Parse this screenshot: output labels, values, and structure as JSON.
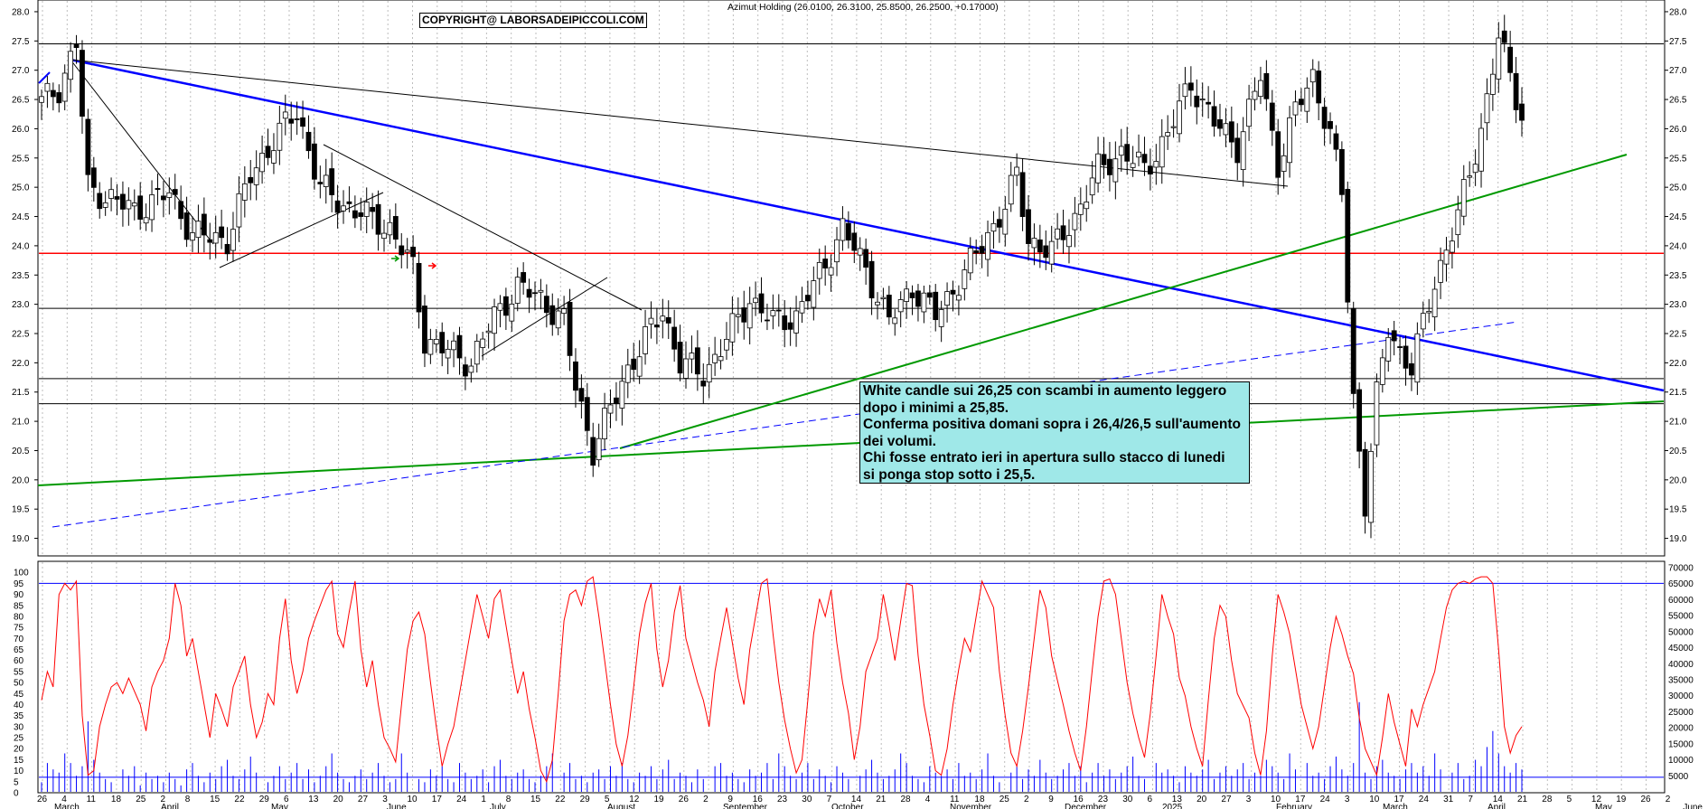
{
  "title": "Azimut Holding (26.0100, 26.3100, 25.8500, 26.2500, +0.17000)",
  "copyright": "COPYRIGHT@ LABORSADEIPICCOLI.COM",
  "note": {
    "lines": [
      "White candle sui 26,25 con scambi in aumento leggero",
      "dopo i minimi a 25,85.",
      "Conferma positiva domani sopra i 26,4/26,5 sull'aumento",
      "dei volumi.",
      "Chi fosse entrato ieri in apertura sullo stacco di lunedi",
      "si ponga stop sotto i 25,5."
    ],
    "background": "#9fe8e8"
  },
  "colors": {
    "resistance": "#ff0000",
    "trend_blue": "#0000ff",
    "trend_green": "#009900",
    "stochastic": "#ff0000",
    "volume": "#0000ff",
    "candle_down": "#000000",
    "candle_up": "#ffffff"
  },
  "chart_data": [
    {
      "type": "candlestick",
      "ylim": [
        18.7,
        28.2
      ],
      "price_ticks": [
        "28.0",
        "27.5",
        "27.0",
        "26.5",
        "26.0",
        "25.5",
        "25.0",
        "24.5",
        "24.0",
        "23.5",
        "23.0",
        "22.5",
        "22.0",
        "21.5",
        "21.0",
        "20.5",
        "20.0",
        "19.5",
        "19.0"
      ],
      "horizontal_levels": [
        {
          "value": 27.45,
          "color": "black"
        },
        {
          "value": 23.87,
          "color": "red"
        },
        {
          "value": 22.93,
          "color": "black"
        },
        {
          "value": 21.73,
          "color": "black"
        },
        {
          "value": 21.3,
          "color": "black"
        }
      ],
      "close_anchors": [
        [
          0,
          26.45
        ],
        [
          3,
          26.7
        ],
        [
          6,
          27.45
        ],
        [
          8,
          25.0
        ],
        [
          12,
          24.8
        ],
        [
          16,
          24.6
        ],
        [
          22,
          24.9
        ],
        [
          26,
          24.2
        ],
        [
          32,
          24.1
        ],
        [
          36,
          25.2
        ],
        [
          40,
          25.8
        ],
        [
          44,
          26.3
        ],
        [
          48,
          25.0
        ],
        [
          52,
          24.7
        ],
        [
          56,
          24.5
        ],
        [
          60,
          24.3
        ],
        [
          64,
          23.6
        ],
        [
          66,
          22.4
        ],
        [
          70,
          22.2
        ],
        [
          74,
          22.0
        ],
        [
          78,
          22.8
        ],
        [
          82,
          23.3
        ],
        [
          86,
          23.1
        ],
        [
          90,
          22.7
        ],
        [
          92,
          21.6
        ],
        [
          95,
          20.5
        ],
        [
          98,
          21.2
        ],
        [
          101,
          21.9
        ],
        [
          104,
          22.4
        ],
        [
          107,
          22.9
        ],
        [
          110,
          22.0
        ],
        [
          114,
          21.8
        ],
        [
          118,
          22.4
        ],
        [
          122,
          23.1
        ],
        [
          126,
          22.7
        ],
        [
          130,
          22.8
        ],
        [
          134,
          23.5
        ],
        [
          138,
          24.3
        ],
        [
          142,
          23.6
        ],
        [
          146,
          22.7
        ],
        [
          150,
          23.3
        ],
        [
          154,
          22.8
        ],
        [
          158,
          23.4
        ],
        [
          162,
          24.0
        ],
        [
          166,
          24.7
        ],
        [
          168,
          25.2
        ],
        [
          170,
          24.1
        ],
        [
          174,
          23.9
        ],
        [
          178,
          24.5
        ],
        [
          182,
          25.3
        ],
        [
          186,
          25.6
        ],
        [
          190,
          25.3
        ],
        [
          194,
          25.9
        ],
        [
          198,
          26.8
        ],
        [
          202,
          26.1
        ],
        [
          206,
          25.7
        ],
        [
          210,
          26.9
        ],
        [
          213,
          25.4
        ],
        [
          216,
          26.3
        ],
        [
          219,
          26.9
        ],
        [
          222,
          25.9
        ],
        [
          224,
          24.9
        ],
        [
          226,
          21.4
        ],
        [
          228,
          19.6
        ],
        [
          230,
          21.4
        ],
        [
          232,
          22.6
        ],
        [
          234,
          22.2
        ],
        [
          236,
          21.9
        ],
        [
          240,
          23.4
        ],
        [
          244,
          24.5
        ],
        [
          248,
          26.0
        ],
        [
          251,
          27.55
        ],
        [
          255,
          26.25
        ]
      ],
      "volume_ticks": [
        "70000",
        "65000",
        "60000",
        "55000",
        "50000",
        "45000",
        "40000",
        "35000",
        "30000",
        "25000",
        "20000",
        "15000",
        "10000",
        "5000"
      ]
    },
    {
      "type": "line",
      "ylim": [
        0,
        105
      ],
      "y_ticks": [
        "100",
        "95",
        "90",
        "85",
        "80",
        "75",
        "70",
        "65",
        "60",
        "55",
        "50",
        "45",
        "40",
        "35",
        "30",
        "25",
        "20",
        "15",
        "10",
        "5",
        "0"
      ],
      "levels": [
        95,
        7
      ],
      "series": [
        {
          "values": [
            42,
            55,
            48,
            90,
            95,
            92,
            96,
            35,
            8,
            10,
            30,
            40,
            48,
            50,
            45,
            52,
            40,
            28,
            48,
            55,
            60,
            70,
            95,
            85,
            62,
            70,
            55,
            40,
            25,
            45,
            38,
            30,
            48,
            55,
            62,
            40,
            25,
            32,
            45,
            40,
            70,
            88,
            60,
            45,
            55,
            70,
            78,
            92,
            96,
            72,
            66,
            82,
            96,
            65,
            48,
            60,
            40,
            25,
            20,
            14,
            40,
            65,
            78,
            82,
            72,
            50,
            30,
            12,
            22,
            30,
            45,
            60,
            75,
            90,
            80,
            70,
            88,
            92,
            60,
            45,
            55,
            38,
            25,
            10,
            5,
            15,
            45,
            78,
            90,
            92,
            85,
            96,
            98,
            80,
            60,
            40,
            22,
            12,
            26,
            48,
            72,
            86,
            95,
            65,
            48,
            60,
            82,
            94,
            70,
            50,
            42,
            30,
            55,
            70,
            84,
            68,
            52,
            40,
            65,
            80,
            95,
            97,
            72,
            50,
            33,
            20,
            9,
            15,
            42,
            72,
            88,
            80,
            92,
            68,
            50,
            36,
            15,
            30,
            55,
            70,
            90,
            76,
            60,
            78,
            95,
            94,
            62,
            40,
            26,
            10,
            8,
            20,
            40,
            56,
            70,
            64,
            80,
            96,
            90,
            84,
            55,
            35,
            18,
            12,
            28,
            48,
            70,
            92,
            84,
            62,
            40,
            28,
            18,
            10,
            30,
            56,
            80,
            96,
            97,
            90,
            70,
            50,
            36,
            25,
            16,
            36,
            62,
            90,
            80,
            72,
            52,
            44,
            30,
            20,
            12,
            42,
            70,
            85,
            80,
            60,
            45,
            34,
            18,
            8,
            28,
            62,
            90,
            82,
            72,
            56,
            40,
            30,
            20,
            30,
            48,
            66,
            80,
            72,
            62,
            54,
            34,
            20,
            14,
            8,
            25,
            45,
            32,
            22,
            12,
            38,
            30,
            40,
            55,
            70,
            84,
            92,
            95,
            96,
            95,
            97,
            98,
            98,
            95,
            65,
            30,
            18,
            26,
            30
          ]
        },
        {
          "values": [
            3,
            9,
            7,
            6,
            12,
            9,
            5,
            8,
            22,
            10,
            6,
            4,
            3,
            7,
            5,
            8,
            2,
            6,
            4,
            5,
            3,
            6,
            4,
            2,
            7,
            9,
            5,
            3,
            6,
            4,
            8,
            10,
            5,
            4,
            7,
            11,
            6,
            3,
            5,
            8,
            4,
            6,
            9,
            4,
            7,
            3,
            5,
            8,
            12,
            6,
            4,
            3,
            5,
            7,
            4,
            6,
            9,
            5,
            3,
            4,
            12,
            6,
            4,
            3,
            7,
            5,
            8,
            4,
            3,
            9,
            6,
            4,
            5,
            7,
            3,
            8,
            10,
            5,
            4,
            6,
            7,
            4,
            3,
            5,
            8,
            12,
            6,
            9,
            4,
            5,
            3,
            6,
            7,
            4,
            8,
            5,
            9,
            4,
            3,
            6,
            5,
            8,
            4,
            7,
            10,
            4,
            6,
            5,
            3,
            7,
            4,
            8,
            9,
            5,
            6,
            4,
            3,
            7,
            5,
            6,
            9,
            4,
            12,
            8,
            5,
            4,
            6,
            9,
            4,
            7,
            5,
            3,
            8,
            6,
            4,
            5,
            7,
            10,
            6,
            4,
            5,
            7,
            12,
            9,
            5,
            4,
            3,
            8,
            6,
            5,
            7,
            4,
            9,
            5,
            6,
            4,
            7,
            12,
            5,
            3,
            6,
            8,
            4,
            7,
            5,
            10,
            6,
            4,
            5,
            7,
            9,
            5,
            8,
            3,
            6,
            9,
            5,
            7,
            4,
            6,
            8,
            11,
            5,
            4,
            9,
            6,
            7,
            5,
            3,
            8,
            6,
            5,
            7,
            10,
            4,
            6,
            8,
            5,
            7,
            9,
            4,
            6,
            5,
            10,
            8,
            6,
            4,
            12,
            7,
            9,
            5,
            6,
            4,
            8,
            11,
            7,
            5,
            9,
            28,
            6,
            4,
            8,
            10,
            6,
            5,
            4,
            7,
            9,
            6,
            8,
            5,
            12,
            7,
            6,
            9,
            4,
            5,
            10,
            8,
            14,
            19,
            12,
            8,
            6,
            9,
            7
          ]
        }
      ],
      "volume_scale_ticks": [
        "70000",
        "65000",
        "60000",
        "55000",
        "50000",
        "45000",
        "40000",
        "35000",
        "30000",
        "25000",
        "20000",
        "15000",
        "10000",
        "5000"
      ],
      "volume_scale_values": [
        70000,
        65000,
        60000,
        55000,
        50000,
        45000,
        40000,
        35000,
        30000,
        25000,
        20000,
        15000,
        10000,
        5000
      ]
    }
  ],
  "x_axis": {
    "day_labels": [
      "26",
      "4",
      "11",
      "18",
      "25",
      "2",
      "8",
      "15",
      "22",
      "29",
      "6",
      "13",
      "20",
      "27",
      "3",
      "10",
      "17",
      "24",
      "1",
      "8",
      "15",
      "22",
      "29",
      "5",
      "12",
      "19",
      "26",
      "2",
      "9",
      "16",
      "23",
      "30",
      "7",
      "14",
      "21",
      "28",
      "4",
      "11",
      "18",
      "25",
      "2",
      "9",
      "16",
      "23",
      "30",
      "6",
      "13",
      "20",
      "27",
      "3",
      "10",
      "17",
      "24",
      "3",
      "10",
      "17",
      "24",
      "31",
      "7",
      "14",
      "21",
      "28",
      "5",
      "12",
      "19",
      "26",
      "2"
    ],
    "month_labels": [
      "March",
      "April",
      "May",
      "June",
      "July",
      "August",
      "September",
      "October",
      "November",
      "December",
      "2025",
      "February",
      "March",
      "April",
      "May",
      "June"
    ]
  }
}
